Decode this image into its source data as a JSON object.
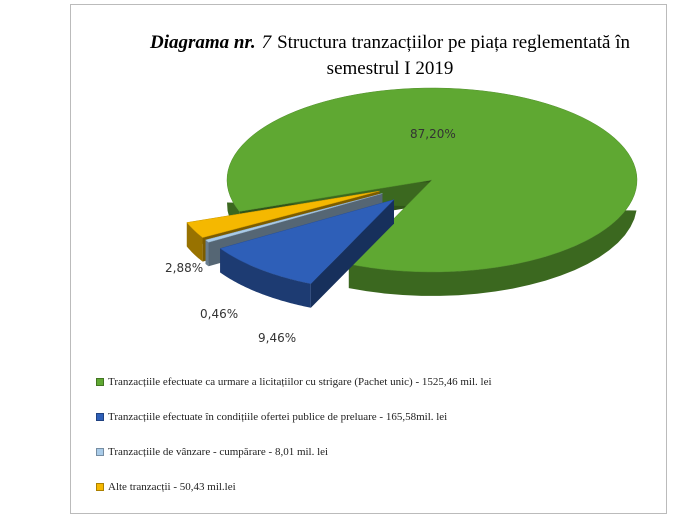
{
  "chart_data": {
    "type": "pie3d",
    "figure_label": "Diagrama nr.",
    "figure_number": "7",
    "title": "Structura tranzacțiilor pe piața reglementată în semestrul I 2019",
    "series": [
      {
        "name": "Tranzacțiile efectuate ca urmare a licitațiilor cu strigare (Pachet unic)  - 1525,46 mil. lei",
        "color": "#5fa832"
      },
      {
        "name": "Tranzacțiile efectuate în condițiile ofertei publice de preluare - 165,58mil. lei",
        "color": "#2e5fb8"
      },
      {
        "name": "Tranzacțiile de vânzare - cumpărare   - 8,01 mil. lei",
        "color": "#a9cbe8"
      },
      {
        "name": "Alte tranzacții - 50,43 mil.lei",
        "color": "#f5b800"
      }
    ],
    "values": [
      87.2,
      9.46,
      0.46,
      2.88
    ],
    "value_labels": [
      "87,20%",
      "9,46%",
      "0,46%",
      "2,88%"
    ]
  }
}
